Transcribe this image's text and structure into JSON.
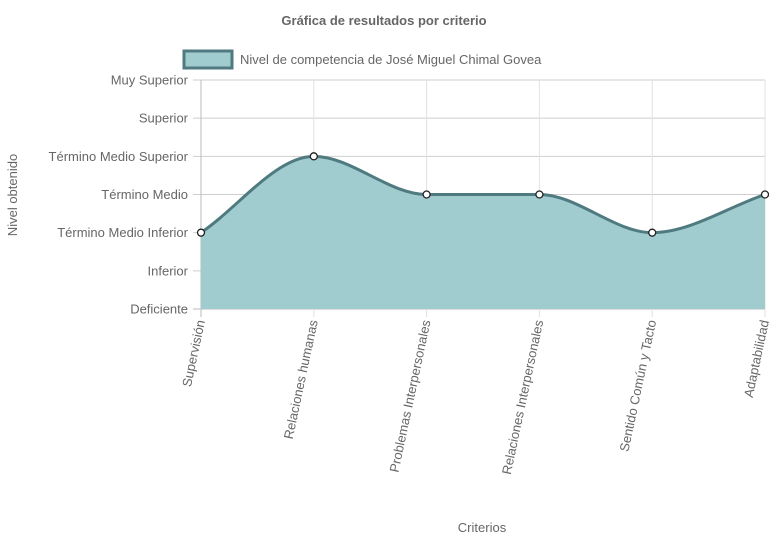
{
  "chart_data": {
    "type": "area",
    "title": "Gráfica de resultados por criterio",
    "xlabel": "Criterios",
    "ylabel": "Nivel obtenido",
    "categories": [
      "Supervisión",
      "Relaciones humanas",
      "Problemas Interpersonales",
      "Relaciones Interpersonales",
      "Sentido Común y Tacto",
      "Adaptabilidad"
    ],
    "y_levels": [
      "Deficiente",
      "Inferior",
      "Término Medio Inferior",
      "Término Medio",
      "Término Medio Superior",
      "Superior",
      "Muy Superior"
    ],
    "ylim": [
      0,
      6
    ],
    "series": [
      {
        "name": "Nivel de competencia de José Miguel Chimal Govea",
        "values": [
          2,
          4,
          3,
          3,
          2,
          3
        ],
        "fill_color": "#a1cccf",
        "line_color": "#4f7a80"
      }
    ],
    "grid": true,
    "legend_position": "top"
  }
}
